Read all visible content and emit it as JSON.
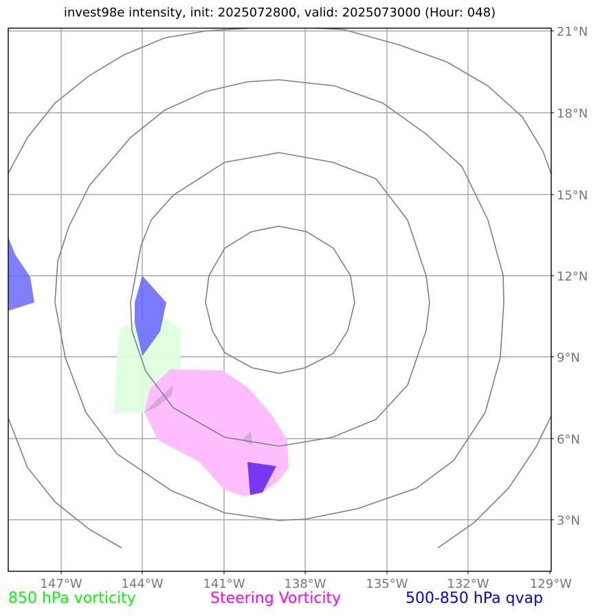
{
  "title": "invest98e intensity, init: 2025072800, valid: 2025073000 (Hour: 048)",
  "map": {
    "lat_labels": [
      "21°N",
      "18°N",
      "15°N",
      "12°N",
      "9°N",
      "6°N",
      "3°N"
    ],
    "lon_labels": [
      "147°W",
      "144°W",
      "141°W",
      "138°W",
      "135°W",
      "132°W",
      "129°W"
    ],
    "grid": true,
    "colors": {
      "vorticity_850": "#ddffdd",
      "steering_vorticity": "#ffbbff",
      "qvap": "#7070ff",
      "range_rings": "#808080",
      "gridlines": "#999999"
    }
  },
  "legend": [
    {
      "label": "850 hPa vorticity",
      "color": "#00ff00"
    },
    {
      "label": "Steering Vorticity",
      "color": "#ff00ff"
    },
    {
      "label": "500-850 hPa qvap",
      "color": "#0000ff"
    }
  ]
}
